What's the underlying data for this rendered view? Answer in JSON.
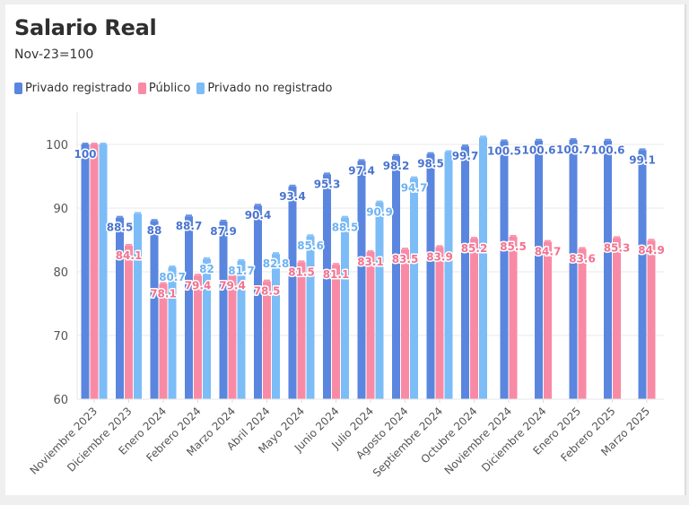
{
  "header": {
    "title": "Salario Real",
    "subtitle": "Nov-23=100"
  },
  "legend": [
    {
      "label": "Privado registrado",
      "color": "#5a86df"
    },
    {
      "label": "Público",
      "color": "#f98aa6"
    },
    {
      "label": "Privado no registrado",
      "color": "#7cbcf7"
    }
  ],
  "chart_data": {
    "type": "bar",
    "title": "Salario Real",
    "subtitle": "Nov-23=100",
    "xlabel": "",
    "ylabel": "",
    "ylim": [
      60,
      102
    ],
    "yticks": [
      60,
      70,
      80,
      90,
      100
    ],
    "ytick_labels": [
      "60",
      "70",
      "80",
      "90",
      "100"
    ],
    "grid": true,
    "legend_position": "top-left",
    "categories": [
      "Noviembre 2023",
      "Diciembre 2023",
      "Enero 2024",
      "Febrero 2024",
      "Marzo 2024",
      "Abril 2024",
      "Mayo 2024",
      "Junio 2024",
      "Julio 2024",
      "Agosto 2024",
      "Septiembre 2024",
      "Octubre 2024",
      "Noviembre 2024",
      "Diciembre 2024",
      "Enero 2025",
      "Febrero 2025",
      "Marzo 2025"
    ],
    "series": [
      {
        "name": "Privado registrado",
        "color": "#5a86df",
        "values": [
          100,
          88.5,
          88,
          88.7,
          87.9,
          90.4,
          93.4,
          95.3,
          97.4,
          98.2,
          98.5,
          99.7,
          100.5,
          100.6,
          100.7,
          100.6,
          99.1
        ],
        "labels": [
          "100",
          "88.5",
          "88",
          "88.7",
          "87.9",
          "90.4",
          "93.4",
          "95.3",
          "97.4",
          "98.2",
          "98.5",
          "99.7",
          "100.5",
          "100.6",
          "100.7",
          "100.6",
          "99.1"
        ]
      },
      {
        "name": "Público",
        "color": "#f98aa6",
        "values": [
          100,
          84.1,
          78.1,
          79.4,
          79.4,
          78.5,
          81.5,
          81.1,
          83.1,
          83.5,
          83.9,
          85.2,
          85.5,
          84.7,
          83.6,
          85.3,
          84.9
        ],
        "labels": [
          "",
          "84.1",
          "78.1",
          "79.4",
          "79.4",
          "78.5",
          "81.5",
          "81.1",
          "83.1",
          "83.5",
          "83.9",
          "85.2",
          "85.5",
          "84.7",
          "83.6",
          "85.3",
          "84.9"
        ]
      },
      {
        "name": "Privado no registrado",
        "color": "#7cbcf7",
        "values": [
          100,
          89.1,
          80.7,
          82,
          81.7,
          82.8,
          85.6,
          88.5,
          90.9,
          94.7,
          98.8,
          101.1,
          null,
          null,
          null,
          null,
          null
        ],
        "labels": [
          "",
          "",
          "80.7",
          "82",
          "81.7",
          "82.8",
          "85.6",
          "88.5",
          "90.9",
          "94.7",
          "",
          "",
          "",
          "",
          "",
          "",
          ""
        ]
      }
    ]
  }
}
